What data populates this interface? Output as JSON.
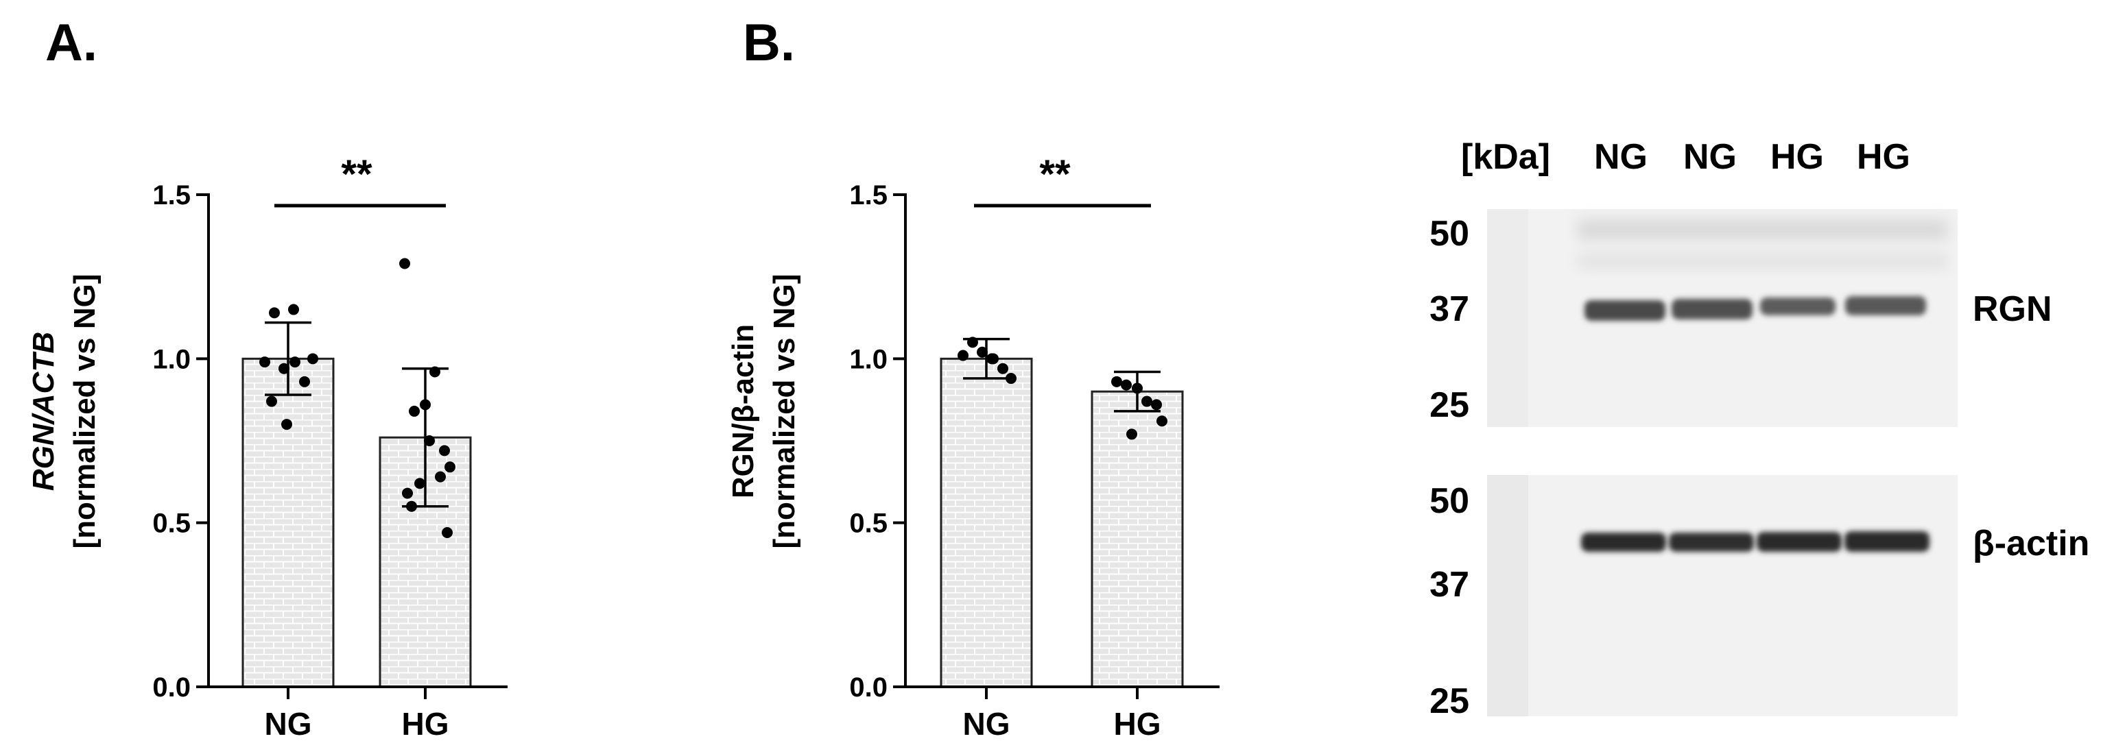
{
  "panel_labels": {
    "a": "A.",
    "b": "B."
  },
  "chart_data": [
    {
      "type": "bar",
      "panel": "A.",
      "categories": [
        "NG",
        "HG"
      ],
      "ylabel_line1_italic": "RGN/ACTB",
      "ylabel_line2": "[normalized vs NG]",
      "ylim": [
        0,
        1.5
      ],
      "yticks": [
        "0.0",
        "0.5",
        "1.0",
        "1.5"
      ],
      "significance": "**",
      "series": [
        {
          "values": [
            1.0,
            0.76
          ],
          "sd": [
            0.11,
            0.21
          ],
          "points": [
            [
              0.99,
              1.14,
              0.97,
              1.15,
              0.93,
              1.0,
              0.99,
              0.87,
              0.8
            ],
            [
              1.29,
              0.84,
              0.86,
              0.96,
              0.72,
              0.67,
              0.62,
              0.64,
              0.59,
              0.75,
              0.55,
              0.47
            ]
          ]
        }
      ],
      "fill_color": "#e3e3e3"
    },
    {
      "type": "bar",
      "panel": "B.",
      "categories": [
        "NG",
        "HG"
      ],
      "ylabel_line1": "RGN/β-actin",
      "ylabel_line2": "[normalized vs NG]",
      "ylim": [
        0,
        1.5
      ],
      "yticks": [
        "0.0",
        "0.5",
        "1.0",
        "1.5"
      ],
      "significance": "**",
      "series": [
        {
          "values": [
            1.0,
            0.9
          ],
          "sd": [
            0.06,
            0.06
          ],
          "points": [
            [
              1.01,
              1.05,
              1.02,
              1.0,
              0.97,
              0.94,
              1.0
            ],
            [
              0.93,
              0.92,
              0.91,
              0.87,
              0.86,
              0.81,
              0.77
            ]
          ]
        }
      ],
      "fill_color": "#e3e3e3"
    }
  ],
  "blot": {
    "kda_header": "[kDa]",
    "lane_labels": [
      "NG",
      "NG",
      "HG",
      "HG"
    ],
    "top": {
      "markers": [
        "50",
        "37",
        "25"
      ],
      "band_label": "RGN"
    },
    "bottom": {
      "markers": [
        "50",
        "37",
        "25"
      ],
      "band_label": "β-actin"
    }
  }
}
